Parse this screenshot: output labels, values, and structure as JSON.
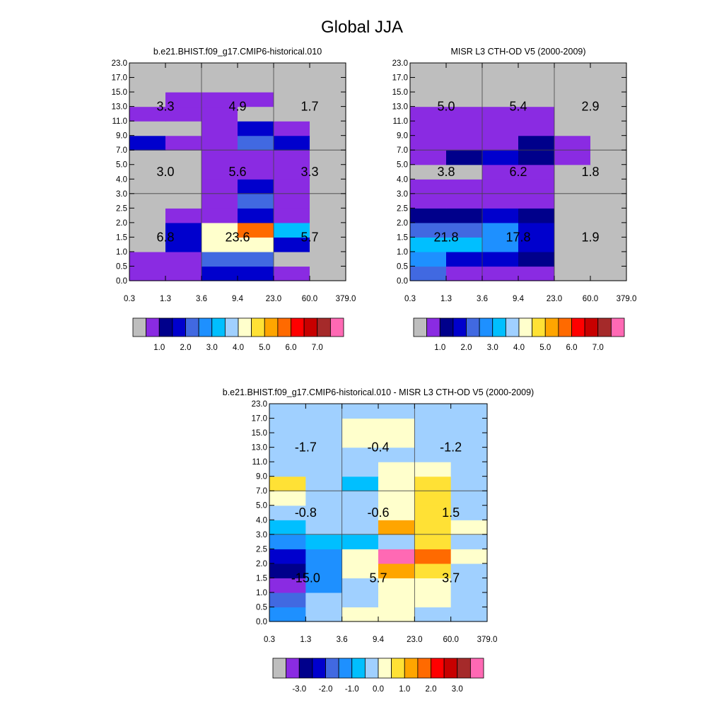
{
  "figure_title": "Global JJA",
  "chart_data": [
    {
      "type": "heatmap",
      "title": "b.e21.BHIST.f09_g17.CMIP6-historical.010",
      "x_tick_labels": [
        "0.3",
        "1.3",
        "3.6",
        "9.4",
        "23.0",
        "60.0",
        "379.0"
      ],
      "y_tick_labels": [
        "0.0",
        "0.5",
        "1.0",
        "1.5",
        "2.0",
        "2.5",
        "3.0",
        "4.0",
        "5.0",
        "7.0",
        "9.0",
        "11.0",
        "13.0",
        "15.0",
        "17.0",
        "23.0"
      ],
      "x_edges": [
        0.3,
        1.3,
        3.6,
        9.4,
        23.0,
        60.0,
        379.0
      ],
      "y_edges": [
        0.0,
        0.5,
        1.0,
        1.5,
        2.0,
        2.5,
        3.0,
        4.0,
        5.0,
        7.0,
        9.0,
        11.0,
        13.0,
        15.0,
        17.0,
        23.0
      ],
      "color_classes_rows_bottom_to_top": [
        [
          1,
          1,
          3,
          3,
          1,
          0
        ],
        [
          1,
          1,
          4,
          4,
          0,
          0
        ],
        [
          0,
          3,
          8,
          8,
          3,
          0
        ],
        [
          0,
          3,
          8,
          11,
          6,
          0
        ],
        [
          0,
          1,
          1,
          3,
          1,
          0
        ],
        [
          0,
          0,
          1,
          4,
          1,
          0
        ],
        [
          0,
          0,
          1,
          3,
          1,
          0
        ],
        [
          0,
          0,
          1,
          1,
          1,
          0
        ],
        [
          0,
          0,
          1,
          1,
          1,
          0
        ],
        [
          3,
          1,
          1,
          4,
          3,
          0
        ],
        [
          0,
          0,
          1,
          3,
          1,
          0
        ],
        [
          1,
          1,
          1,
          0,
          0,
          0
        ],
        [
          0,
          1,
          1,
          1,
          0,
          0
        ],
        [
          0,
          0,
          0,
          0,
          0,
          0
        ],
        [
          0,
          0,
          0,
          0,
          0,
          0
        ]
      ],
      "block_x_edges": [
        0.3,
        3.6,
        23.0,
        379.0
      ],
      "block_y_edges": [
        0.0,
        3.0,
        7.0,
        23.0
      ],
      "block_labels_bottom_to_top": [
        [
          "6.8",
          "23.6",
          "5.7"
        ],
        [
          "3.0",
          "5.6",
          "3.3"
        ],
        [
          "3.3",
          "4.9",
          "1.7"
        ]
      ],
      "colorbar": {
        "colors": [
          "#bebebe",
          "#8a2be2",
          "#00008b",
          "#0000cd",
          "#4169e1",
          "#1e90ff",
          "#00bfff",
          "#a0d0ff",
          "#ffffcc",
          "#ffe135",
          "#ffa500",
          "#ff6a00",
          "#ff0000",
          "#c80000",
          "#a52a2a",
          "#ff69b4"
        ],
        "tick_labels": [
          "1.0",
          "2.0",
          "3.0",
          "4.0",
          "5.0",
          "6.0",
          "7.0"
        ]
      }
    },
    {
      "type": "heatmap",
      "title": "MISR L3 CTH-OD V5 (2000-2009)",
      "x_tick_labels": [
        "0.3",
        "1.3",
        "3.6",
        "9.4",
        "23.0",
        "60.0",
        "379.0"
      ],
      "y_tick_labels": [
        "0.0",
        "0.5",
        "1.0",
        "1.5",
        "2.0",
        "2.5",
        "3.0",
        "4.0",
        "5.0",
        "7.0",
        "9.0",
        "11.0",
        "13.0",
        "15.0",
        "17.0",
        "23.0"
      ],
      "x_edges": [
        0.3,
        1.3,
        3.6,
        9.4,
        23.0,
        60.0,
        379.0
      ],
      "y_edges": [
        0.0,
        0.5,
        1.0,
        1.5,
        2.0,
        2.5,
        3.0,
        4.0,
        5.0,
        7.0,
        9.0,
        11.0,
        13.0,
        15.0,
        17.0,
        23.0
      ],
      "color_classes_rows_bottom_to_top": [
        [
          4,
          1,
          1,
          1,
          0,
          0
        ],
        [
          5,
          3,
          3,
          2,
          0,
          0
        ],
        [
          6,
          6,
          5,
          3,
          0,
          0
        ],
        [
          4,
          4,
          5,
          3,
          0,
          0
        ],
        [
          2,
          2,
          3,
          2,
          0,
          0
        ],
        [
          1,
          1,
          1,
          1,
          0,
          0
        ],
        [
          1,
          1,
          1,
          1,
          0,
          0
        ],
        [
          0,
          0,
          1,
          1,
          0,
          0
        ],
        [
          1,
          2,
          3,
          2,
          1,
          0
        ],
        [
          1,
          1,
          1,
          2,
          1,
          0
        ],
        [
          1,
          1,
          1,
          1,
          0,
          0
        ],
        [
          1,
          1,
          1,
          1,
          0,
          0
        ],
        [
          0,
          0,
          0,
          0,
          0,
          0
        ],
        [
          0,
          0,
          0,
          0,
          0,
          0
        ],
        [
          0,
          0,
          0,
          0,
          0,
          0
        ]
      ],
      "block_x_edges": [
        0.3,
        3.6,
        23.0,
        379.0
      ],
      "block_y_edges": [
        0.0,
        3.0,
        7.0,
        23.0
      ],
      "block_labels_bottom_to_top": [
        [
          "21.8",
          "17.8",
          "1.9"
        ],
        [
          "3.8",
          "6.2",
          "1.8"
        ],
        [
          "5.0",
          "5.4",
          "2.9"
        ]
      ],
      "colorbar": {
        "colors": [
          "#bebebe",
          "#8a2be2",
          "#00008b",
          "#0000cd",
          "#4169e1",
          "#1e90ff",
          "#00bfff",
          "#a0d0ff",
          "#ffffcc",
          "#ffe135",
          "#ffa500",
          "#ff6a00",
          "#ff0000",
          "#c80000",
          "#a52a2a",
          "#ff69b4"
        ],
        "tick_labels": [
          "1.0",
          "2.0",
          "3.0",
          "4.0",
          "5.0",
          "6.0",
          "7.0"
        ]
      }
    },
    {
      "type": "heatmap",
      "title": "b.e21.BHIST.f09_g17.CMIP6-historical.010 - MISR L3 CTH-OD V5 (2000-2009)",
      "x_tick_labels": [
        "0.3",
        "1.3",
        "3.6",
        "9.4",
        "23.0",
        "60.0",
        "379.0"
      ],
      "y_tick_labels": [
        "0.0",
        "0.5",
        "1.0",
        "1.5",
        "2.0",
        "2.5",
        "3.0",
        "4.0",
        "5.0",
        "7.0",
        "9.0",
        "11.0",
        "13.0",
        "15.0",
        "17.0",
        "23.0"
      ],
      "x_edges": [
        0.3,
        1.3,
        3.6,
        9.4,
        23.0,
        60.0,
        379.0
      ],
      "y_edges": [
        0.0,
        0.5,
        1.0,
        1.5,
        2.0,
        2.5,
        3.0,
        4.0,
        5.0,
        7.0,
        9.0,
        11.0,
        13.0,
        15.0,
        17.0,
        23.0
      ],
      "color_classes_rows_bottom_to_top": [
        [
          5,
          7,
          8,
          8,
          7,
          7
        ],
        [
          4,
          7,
          7,
          8,
          8,
          7
        ],
        [
          1,
          5,
          7,
          8,
          8,
          7
        ],
        [
          2,
          5,
          8,
          10,
          9,
          7
        ],
        [
          3,
          5,
          8,
          15,
          11,
          8
        ],
        [
          5,
          6,
          6,
          7,
          9,
          7
        ],
        [
          6,
          7,
          7,
          10,
          9,
          8
        ],
        [
          7,
          7,
          7,
          8,
          9,
          7
        ],
        [
          8,
          7,
          7,
          8,
          9,
          7
        ],
        [
          9,
          7,
          6,
          8,
          9,
          7
        ],
        [
          7,
          7,
          7,
          8,
          8,
          7
        ],
        [
          7,
          7,
          7,
          7,
          7,
          7
        ],
        [
          7,
          7,
          8,
          8,
          7,
          7
        ],
        [
          7,
          7,
          8,
          8,
          7,
          7
        ],
        [
          7,
          7,
          7,
          7,
          7,
          7
        ]
      ],
      "block_x_edges": [
        0.3,
        3.6,
        23.0,
        379.0
      ],
      "block_y_edges": [
        0.0,
        3.0,
        7.0,
        23.0
      ],
      "block_labels_bottom_to_top": [
        [
          "-15.0",
          "5.7",
          "3.7"
        ],
        [
          "-0.8",
          "-0.6",
          "1.5"
        ],
        [
          "-1.7",
          "-0.4",
          "-1.2"
        ]
      ],
      "colorbar": {
        "colors": [
          "#bebebe",
          "#8a2be2",
          "#00008b",
          "#0000cd",
          "#4169e1",
          "#1e90ff",
          "#00bfff",
          "#a0d0ff",
          "#ffffcc",
          "#ffe135",
          "#ffa500",
          "#ff6a00",
          "#ff0000",
          "#c80000",
          "#a52a2a",
          "#ff69b4"
        ],
        "tick_labels": [
          "-3.0",
          "-2.0",
          "-1.0",
          "0.0",
          "1.0",
          "2.0",
          "3.0"
        ]
      }
    }
  ]
}
